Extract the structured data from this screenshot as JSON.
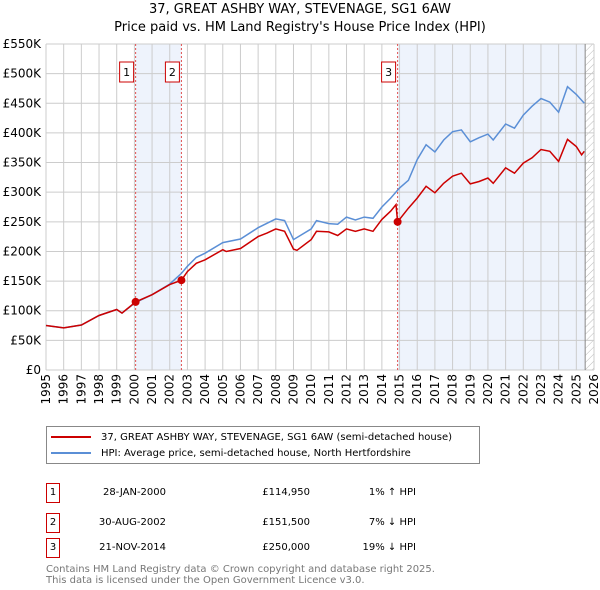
{
  "chart_data": {
    "type": "line",
    "title": "37, GREAT ASHBY WAY, STEVENAGE, SG1 6AW",
    "subtitle": "Price paid vs. HM Land Registry's House Price Index (HPI)",
    "xlim": [
      1995,
      2026
    ],
    "ylim": [
      0,
      550000
    ],
    "y_ticks": [
      0,
      50000,
      100000,
      150000,
      200000,
      250000,
      300000,
      350000,
      400000,
      450000,
      500000,
      550000
    ],
    "y_tick_labels": [
      "£0",
      "£50K",
      "£100K",
      "£150K",
      "£200K",
      "£250K",
      "£300K",
      "£350K",
      "£400K",
      "£450K",
      "£500K",
      "£550K"
    ],
    "x_tick_labels": [
      "1995",
      "1996",
      "1997",
      "1998",
      "1999",
      "2000",
      "2001",
      "2002",
      "2003",
      "2004",
      "2005",
      "2006",
      "2007",
      "2008",
      "2009",
      "2010",
      "2011",
      "2012",
      "2013",
      "2014",
      "2015",
      "2016",
      "2017",
      "2018",
      "2019",
      "2020",
      "2021",
      "2022",
      "2023",
      "2024",
      "2025",
      "2026"
    ],
    "grid": true,
    "series": [
      {
        "name": "37, GREAT ASHBY WAY, STEVENAGE, SG1 6AW (semi-detached house)",
        "color": "#cc0000",
        "x": [
          1995,
          1996,
          1997,
          1998,
          1999,
          1999.3,
          2000.07,
          2001,
          2002,
          2002.66,
          2003,
          2003.5,
          2004,
          2005,
          2005.2,
          2006,
          2007,
          2007.5,
          2008,
          2008.5,
          2009,
          2009.2,
          2010,
          2010.3,
          2011,
          2011.5,
          2012,
          2012.5,
          2013,
          2013.5,
          2014,
          2014.5,
          2014.8,
          2014.89,
          2015.5,
          2016,
          2016.5,
          2017,
          2017.5,
          2018,
          2018.5,
          2019,
          2019.5,
          2020,
          2020.3,
          2021,
          2021.5,
          2022,
          2022.5,
          2023,
          2023.5,
          2024,
          2024.5,
          2025,
          2025.3,
          2025.45
        ],
        "y": [
          75000,
          71000,
          76000,
          92000,
          102000,
          96000,
          114950,
          127000,
          144000,
          151500,
          166000,
          180000,
          186000,
          203000,
          200000,
          205000,
          225000,
          231000,
          238000,
          234000,
          204000,
          202000,
          220000,
          234000,
          233000,
          227000,
          238000,
          234000,
          238000,
          234000,
          254000,
          268000,
          279000,
          250000,
          273000,
          290000,
          310000,
          299000,
          315000,
          327000,
          332000,
          314000,
          318000,
          324000,
          315000,
          341000,
          332000,
          349000,
          358000,
          372000,
          369000,
          352000,
          389000,
          377000,
          363000,
          369000
        ]
      },
      {
        "name": "HPI: Average price, semi-detached house, North Hertfordshire",
        "color": "#5b8fd6",
        "x": [
          1995,
          1996,
          1997,
          1998,
          1999,
          1999.3,
          2000.07,
          2001,
          2002,
          2002.66,
          2003,
          2003.5,
          2004,
          2005,
          2006,
          2007,
          2008,
          2008.5,
          2009,
          2010,
          2010.3,
          2011,
          2011.5,
          2012,
          2012.5,
          2013,
          2013.5,
          2014,
          2014.5,
          2015,
          2015.5,
          2016,
          2016.5,
          2017,
          2017.5,
          2018,
          2018.5,
          2019,
          2019.5,
          2020,
          2020.3,
          2021,
          2021.5,
          2022,
          2022.5,
          2023,
          2023.5,
          2024,
          2024.5,
          2025,
          2025.45
        ],
        "y": [
          75000,
          71000,
          76000,
          92000,
          102000,
          96000,
          114000,
          127000,
          145000,
          163000,
          175000,
          190000,
          197000,
          215000,
          221000,
          240000,
          255000,
          252000,
          220000,
          238000,
          252000,
          247000,
          246000,
          258000,
          253000,
          258000,
          256000,
          275000,
          290000,
          307000,
          320000,
          355000,
          380000,
          368000,
          388000,
          402000,
          405000,
          385000,
          392000,
          398000,
          388000,
          415000,
          408000,
          430000,
          445000,
          458000,
          452000,
          435000,
          478000,
          465000,
          450000
        ]
      }
    ],
    "sales": [
      {
        "label": "1",
        "x": 2000.07,
        "y": 114950
      },
      {
        "label": "2",
        "x": 2002.66,
        "y": 151500
      },
      {
        "label": "3",
        "x": 2014.89,
        "y": 250000
      }
    ],
    "shaded_ranges": [
      [
        2000.07,
        2002.66
      ],
      [
        2014.89,
        2025.5
      ]
    ],
    "hatched_from": 2025.5,
    "legend_position": "below"
  },
  "table": [
    {
      "num": "1",
      "date": "28-JAN-2000",
      "price": "£114,950",
      "hpi": "1% ↑ HPI"
    },
    {
      "num": "2",
      "date": "30-AUG-2002",
      "price": "£151,500",
      "hpi": "7% ↓ HPI"
    },
    {
      "num": "3",
      "date": "21-NOV-2014",
      "price": "£250,000",
      "hpi": "19% ↓ HPI"
    }
  ],
  "footer": {
    "line1": "Contains HM Land Registry data © Crown copyright and database right 2025.",
    "line2": "This data is licensed under the Open Government Licence v3.0."
  }
}
